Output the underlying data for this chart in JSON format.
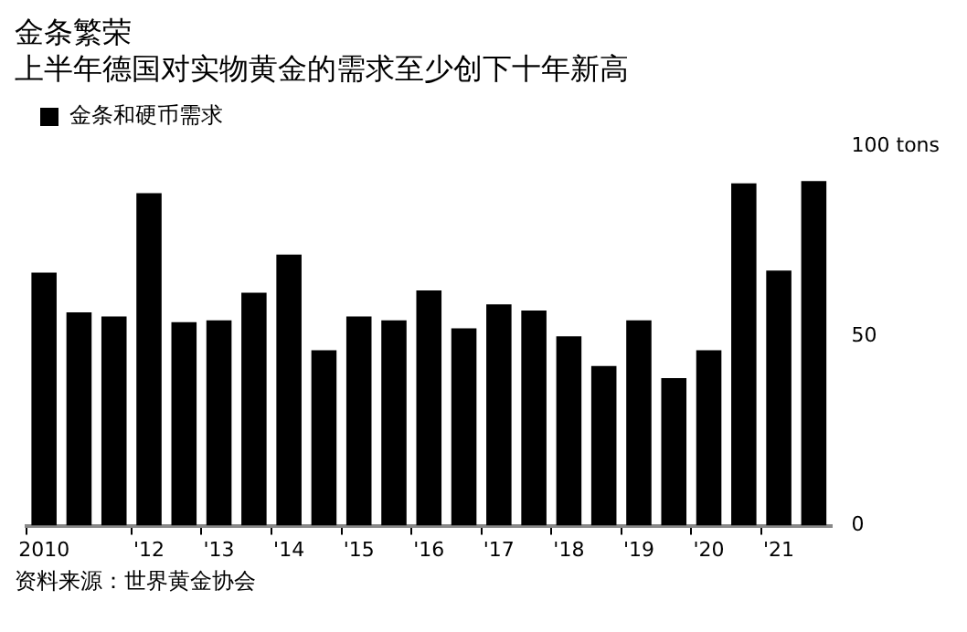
{
  "chart_data": {
    "type": "bar",
    "title": "金条繁荣",
    "subtitle": "上半年德国对实物黄金的需求至少创下十年新高",
    "categories": [
      "2010",
      null,
      null,
      "'12",
      null,
      "'13",
      null,
      "'14",
      null,
      "'15",
      null,
      "'16",
      null,
      "'17",
      null,
      "'18",
      null,
      "'19",
      null,
      "'20",
      null,
      "'21",
      null
    ],
    "series": [
      {
        "name": "金条和硬币需求",
        "color": "#000000",
        "values": [
          66.7,
          56.2,
          55.1,
          87.6,
          53.6,
          54.1,
          61.4,
          71.4,
          46.2,
          55.1,
          54.1,
          62.0,
          52.0,
          58.3,
          56.7,
          49.9,
          42.1,
          54.1,
          38.9,
          46.2,
          90.2,
          67.2,
          90.8
        ]
      }
    ],
    "ylim": [
      0,
      100
    ],
    "yticks": [
      0,
      50,
      {
        "value": 100,
        "label": "100 tons"
      }
    ],
    "grid": false,
    "legend": "top left",
    "annotations": [
      "资料来源：世界黄金协会"
    ]
  }
}
